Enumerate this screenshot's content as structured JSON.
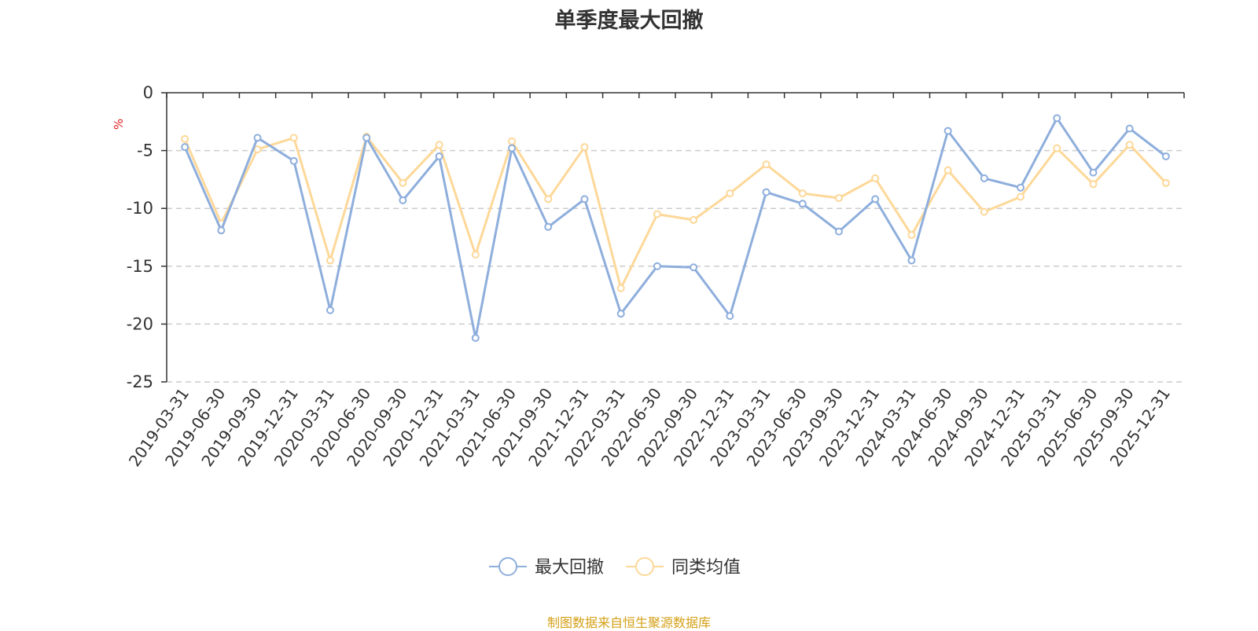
{
  "chart_data": {
    "type": "line",
    "title": "单季度最大回撤",
    "ylabel": "%",
    "xlabel": "",
    "ylim": [
      -25,
      0
    ],
    "yticks": [
      0,
      -5,
      -10,
      -15,
      -20,
      -25
    ],
    "grid": true,
    "legend_position": "bottom-center",
    "categories": [
      "2019-03-31",
      "2019-06-30",
      "2019-09-30",
      "2019-12-31",
      "2020-03-31",
      "2020-06-30",
      "2020-09-30",
      "2020-12-31",
      "2021-03-31",
      "2021-06-30",
      "2021-09-30",
      "2021-12-31",
      "2022-03-31",
      "2022-06-30",
      "2022-09-30",
      "2022-12-31",
      "2023-03-31",
      "2023-06-30",
      "2023-09-30",
      "2023-12-31",
      "2024-03-31",
      "2024-06-30",
      "2024-09-30",
      "2024-12-31",
      "2025-03-31",
      "2025-06-30",
      "2025-09-30",
      "2025-12-31"
    ],
    "series": [
      {
        "name": "最大回撤",
        "color": "#8eaedc",
        "values": [
          -4.7,
          -11.9,
          -3.9,
          -5.9,
          -18.8,
          -3.9,
          -9.3,
          -5.5,
          -21.2,
          -4.8,
          -11.6,
          -9.2,
          -19.1,
          -15.0,
          -15.1,
          -19.3,
          -8.6,
          -9.6,
          -12.0,
          -9.2,
          -14.5,
          -3.3,
          -7.4,
          -8.2,
          -2.2,
          -6.9,
          -3.1,
          -5.5
        ]
      },
      {
        "name": "同类均值",
        "color": "#fdd899",
        "values": [
          -4.0,
          -11.3,
          -4.9,
          -3.9,
          -14.5,
          -3.8,
          -7.8,
          -4.5,
          -14.0,
          -4.2,
          -9.2,
          -4.7,
          -16.9,
          -10.5,
          -11.0,
          -8.7,
          -6.2,
          -8.7,
          -9.1,
          -7.4,
          -12.3,
          -6.7,
          -10.3,
          -9.0,
          -4.8,
          -7.9,
          -4.5,
          -7.8
        ]
      }
    ]
  },
  "source_note": "制图数据来自恒生聚源数据库",
  "colors": {
    "axis": "#333333",
    "grid": "#cccccc",
    "tick_text": "#333333",
    "ylabel": "#e02020",
    "source": "#d4a017"
  }
}
